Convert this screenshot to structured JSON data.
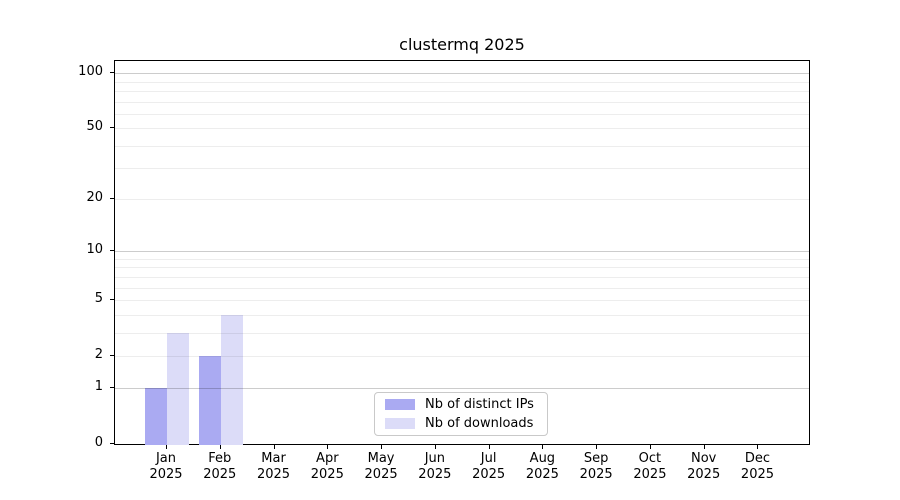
{
  "chart_data": {
    "type": "bar",
    "title": "clustermq 2025",
    "categories": [
      "Jan",
      "Feb",
      "Mar",
      "Apr",
      "May",
      "Jun",
      "Jul",
      "Aug",
      "Sep",
      "Oct",
      "Nov",
      "Dec"
    ],
    "category_year": "2025",
    "series": [
      {
        "name": "Nb of distinct IPs",
        "color": "#aaaaf2",
        "values": [
          1,
          2,
          0,
          0,
          0,
          0,
          0,
          0,
          0,
          0,
          0,
          0
        ]
      },
      {
        "name": "Nb of downloads",
        "color": "#dcdcf8",
        "values": [
          3,
          4,
          0,
          0,
          0,
          0,
          0,
          0,
          0,
          0,
          0,
          0
        ]
      }
    ],
    "y_axis": {
      "scale": "log10(1+x)",
      "tick_labels": [
        0,
        1,
        2,
        5,
        10,
        20,
        50,
        100
      ],
      "major_gridlines": [
        1,
        10,
        100
      ],
      "minor_gridlines": [
        2,
        3,
        4,
        5,
        6,
        7,
        8,
        9,
        20,
        30,
        40,
        50,
        60,
        70,
        80,
        90
      ]
    },
    "legend": {
      "position": "lower center"
    },
    "colors": {
      "major_grid": "#cccccc",
      "minor_grid": "#ededed",
      "axis": "#000000",
      "background": "#ffffff"
    }
  }
}
